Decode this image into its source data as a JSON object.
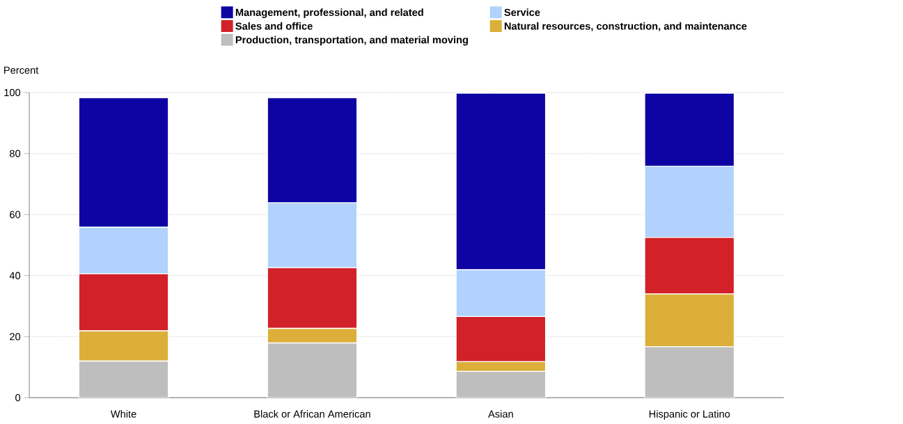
{
  "chart_data": {
    "type": "bar",
    "stacked": true,
    "ylabel": "Percent",
    "categories": [
      "White",
      "Black or African American",
      "Asian",
      "Hispanic or Latino"
    ],
    "series": [
      {
        "name": "Production, transportation, and material moving",
        "color": "#bebebe",
        "values": [
          12.0,
          17.9,
          8.6,
          16.7
        ]
      },
      {
        "name": "Natural resources, construction, and maintenance",
        "color": "#dbaf3a",
        "values": [
          9.9,
          4.8,
          3.2,
          17.3
        ]
      },
      {
        "name": "Sales and office",
        "color": "#d22128",
        "values": [
          18.7,
          19.9,
          14.8,
          18.5
        ]
      },
      {
        "name": "Service",
        "color": "#b0d2fd",
        "values": [
          15.3,
          21.3,
          15.3,
          23.3
        ]
      },
      {
        "name": "Management, professional, and related",
        "color": "#0e04a4",
        "values": [
          42.4,
          34.4,
          57.9,
          24.0
        ]
      }
    ],
    "ylim": [
      0,
      100
    ],
    "yticks": [
      0,
      20,
      40,
      60,
      80,
      100
    ],
    "grid": "y",
    "legend": "top"
  }
}
